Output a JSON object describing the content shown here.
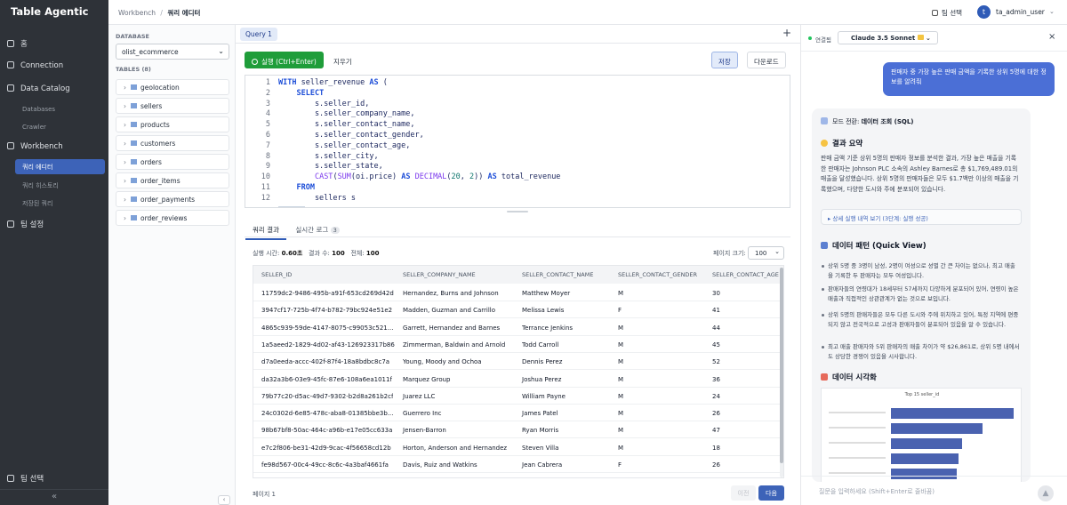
{
  "sidebar": {
    "brand": "Table Agentic",
    "home": "홈",
    "connection": "Connection",
    "data_catalog": "Data Catalog",
    "databases": "Databases",
    "crawler": "Crawler",
    "workbench": "Workbench",
    "query_editor": "쿼리 에디터",
    "query_history": "쿼리 히스토리",
    "saved_queries": "저장된 쿼리",
    "team_settings": "팀 설정",
    "team_select": "팀 선택",
    "collapse": "«"
  },
  "topbar": {
    "breadcrumb_root": "Workbench",
    "breadcrumb_sep": "/",
    "breadcrumb_current": "쿼리 에디터",
    "team_select": "팀 선택",
    "avatar": "t",
    "user": "ta_admin_user"
  },
  "db_panel": {
    "database_label": "DATABASE",
    "database": "olist_ecommerce",
    "tables_label": "TABLES (8)",
    "tables": [
      "geolocation",
      "sellers",
      "products",
      "customers",
      "orders",
      "order_items",
      "order_payments",
      "order_reviews"
    ]
  },
  "editor": {
    "tab": "Query 1",
    "add_tab": "+",
    "run": "실행 (Ctrl+Enter)",
    "clear": "지우기",
    "save": "저장",
    "download": "다운로드",
    "lines": [
      "WITH seller_revenue AS (",
      "    SELECT",
      "        s.seller_id,",
      "        s.seller_company_name,",
      "        s.seller_contact_name,",
      "        s.seller_contact_gender,",
      "        s.seller_contact_age,",
      "        s.seller_city,",
      "        s.seller_state,",
      "        CAST(SUM(oi.price) AS DECIMAL(20, 2)) AS total_revenue",
      "    FROM",
      "        sellers s"
    ]
  },
  "results": {
    "tab_results": "쿼리 결과",
    "tab_logs": "실시간 로그",
    "logs_badge": "3",
    "exec_time_label": "실행 시간:",
    "exec_time": "0.60초",
    "count_label": "결과 수:",
    "count": "100",
    "total_label": "전체:",
    "total": "100",
    "page_size_label": "페이지 크기:",
    "page_size": "100",
    "columns": [
      "SELLER_ID",
      "SELLER_COMPANY_NAME",
      "SELLER_CONTACT_NAME",
      "SELLER_CONTACT_GENDER",
      "SELLER_CONTACT_AGE"
    ],
    "rows": [
      [
        "11759dc2-9486-495b-a91f-653cd269d42d",
        "Hernandez, Burns and Johnson",
        "Matthew Moyer",
        "M",
        "30"
      ],
      [
        "3947cf17-725b-4f74-b782-79bc924e51e2",
        "Madden, Guzman and Carrillo",
        "Melissa Lewis",
        "F",
        "41"
      ],
      [
        "4865c939-59de-4147-8075-c99053c521...",
        "Garrett, Hernandez and Barnes",
        "Terrance Jenkins",
        "M",
        "44"
      ],
      [
        "1a5aeed2-1829-4d02-af43-126923317b86",
        "Zimmerman, Baldwin and Arnold",
        "Todd Carroll",
        "M",
        "45"
      ],
      [
        "d7a0eeda-accc-402f-87f4-18a8bdbc8c7a",
        "Young, Moody and Ochoa",
        "Dennis Perez",
        "M",
        "52"
      ],
      [
        "da32a3b6-03e9-45fc-87e6-108a6ea1011f",
        "Marquez Group",
        "Joshua Perez",
        "M",
        "36"
      ],
      [
        "79b77c20-d5ac-49d7-9302-b2d8a261b2cf",
        "Juarez LLC",
        "William Payne",
        "M",
        "24"
      ],
      [
        "24c0302d-6e85-478c-aba8-01385bbe3b...",
        "Guerrero Inc",
        "James Patel",
        "M",
        "26"
      ],
      [
        "98b67bf8-50ac-464c-a96b-e17e05cc633a",
        "Jensen-Barron",
        "Ryan Morris",
        "M",
        "47"
      ],
      [
        "e7c2f806-be31-42d9-9cac-4f56658cd12b",
        "Horton, Anderson and Hernandez",
        "Steven Villa",
        "M",
        "18"
      ],
      [
        "fe98d567-00c4-49cc-8c6c-4a3baf4661fa",
        "Davis, Ruiz and Watkins",
        "Jean Cabrera",
        "F",
        "26"
      ]
    ],
    "page": "페이지 1",
    "prev": "이전",
    "next": "다음"
  },
  "chat": {
    "status": "연결됨",
    "model": "Claude 3.5 Sonnet",
    "user_message": "판매자 중 가장 높은 판매 금액을 기록한 상위 5명에 대한 정보를 알려줘",
    "mode_label": "모드 전환:",
    "mode": "데이터 조회 (SQL)",
    "summary_title": "결과 요약",
    "summary": "판매 금액 기준 상위 5명의 판매자 정보를 분석한 결과, 가장 높은 매출을 기록한 판매자는 Johnson PLC 소속의 Ashley Barnes로 총 $1,769,489.01의 매출을 달성했습니다. 상위 5명의 판매자들은 모두 $1.7백만 이상의 매출을 기록했으며, 다양한 도시와 주에 분포되어 있습니다.",
    "details": "▸ 상세 실행 내역 보기 (3단계: 실행 성공)",
    "pattern_title": "데이터 패턴 (Quick View)",
    "patterns": [
      "상위 5명 중 3명이 남성, 2명이 여성으로 성별 간 큰 차이는 없으나, 최고 매출을 기록한 두 판매자는 모두 여성입니다.",
      "판매자들의 연령대가 18세부터 57세까지 다양하게 분포되어 있어, 연령이 높은 매출과 직접적인 상관관계가 없는 것으로 보입니다.",
      "상위 5명의 판매자들은 모두 다른 도시와 주에 위치하고 있어, 특정 지역에 편중되지 않고 전국적으로 고성과 판매자들이 분포되어 있음을 알 수 있습니다.",
      "최고 매출 판매자와 5위 판매자의 매출 차이가 약 $26,861로, 상위 5명 내에서도 상당한 경쟁이 있음을 시사합니다."
    ],
    "viz_title": "데이터 시각화",
    "viz_chart_title": "Top 15 seller_id",
    "input_placeholder": "질문을 입력하세요 (Shift+Enter로 줄바꿈)"
  }
}
